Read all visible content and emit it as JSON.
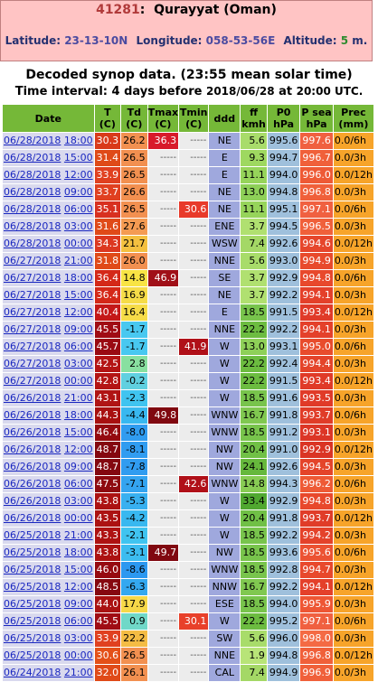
{
  "station": {
    "id": "41281",
    "name": "Qurayyat (Oman)",
    "lat_label": "Latitude:",
    "lat": "23-13-10N",
    "lon_label": "Longitude:",
    "lon": "058-53-56E",
    "alt_label": "Altitude:",
    "alt": "5",
    "alt_unit": "m."
  },
  "subtitle": "Decoded synop data. (23:55 mean solar time)",
  "interval": {
    "prefix": "Time interval:",
    "mid": "4 days before",
    "date": "2018/06/28",
    "at": "at",
    "time": "20:00 UTC."
  },
  "columns": [
    "Date",
    "T\n(C)",
    "Td\n(C)",
    "Tmax\n(C)",
    "Tmin\n(C)",
    "ddd",
    "ff\nkmh",
    "P0\nhPa",
    "P sea\nhPa",
    "Prec\n(mm)"
  ],
  "colors": {
    "header_bg": "#75b838",
    "table_header": "#75b838",
    "p0_bg": "#9fc0dc",
    "ddd_bg": "#9fa8dd",
    "prec_bg": "#f7a42a"
  },
  "rows": [
    {
      "date": "06/28/2018",
      "time": "18:00",
      "t": "30.3",
      "t_bg": "#d93a1a",
      "td": "26.2",
      "td_bg": "#f29050",
      "tmax": "36.3",
      "tmax_bg": "#d81a2a",
      "tmin": "-----",
      "ddd": "NE",
      "ff": "5.6",
      "ff_bg": "#a8dc6a",
      "p0": "995.6",
      "psea": "997.6",
      "psea_bg": "#f06040",
      "prec": "0.0/6h"
    },
    {
      "date": "06/28/2018",
      "time": "15:00",
      "t": "31.4",
      "t_bg": "#df4a18",
      "td": "26.5",
      "td_bg": "#f29050",
      "tmax": "-----",
      "tmin": "-----",
      "ddd": "E",
      "ff": "9.3",
      "ff_bg": "#9ed860",
      "p0": "994.7",
      "psea": "996.7",
      "psea_bg": "#f0603a",
      "prec": "0.0/3h"
    },
    {
      "date": "06/28/2018",
      "time": "12:00",
      "t": "33.9",
      "t_bg": "#e04020",
      "td": "26.5",
      "td_bg": "#f29050",
      "tmax": "-----",
      "tmin": "-----",
      "ddd": "E",
      "ff": "11.1",
      "ff_bg": "#96d45a",
      "p0": "994.0",
      "psea": "996.0",
      "psea_bg": "#ee5a35",
      "prec": "0.0/12h"
    },
    {
      "date": "06/28/2018",
      "time": "09:00",
      "t": "33.7",
      "t_bg": "#e04020",
      "td": "26.6",
      "td_bg": "#f29050",
      "tmax": "-----",
      "tmin": "-----",
      "ddd": "NE",
      "ff": "13.0",
      "ff_bg": "#8ed058",
      "p0": "994.8",
      "psea": "996.8",
      "psea_bg": "#f0603a",
      "prec": "0.0/3h"
    },
    {
      "date": "06/28/2018",
      "time": "06:00",
      "t": "35.1",
      "t_bg": "#d83020",
      "td": "26.5",
      "td_bg": "#f29050",
      "tmax": "-----",
      "tmin": "30.6",
      "tmin_bg": "#e83a2a",
      "ddd": "NE",
      "ff": "11.1",
      "ff_bg": "#96d45a",
      "p0": "995.1",
      "psea": "997.1",
      "psea_bg": "#f06040",
      "prec": "0.0/6h"
    },
    {
      "date": "06/28/2018",
      "time": "03:00",
      "t": "31.6",
      "t_bg": "#e04a18",
      "td": "27.6",
      "td_bg": "#f49b52",
      "tmax": "-----",
      "tmin": "-----",
      "ddd": "ENE",
      "ff": "3.7",
      "ff_bg": "#b0e070",
      "p0": "994.5",
      "psea": "996.5",
      "psea_bg": "#f0603a",
      "prec": "0.0/3h"
    },
    {
      "date": "06/28/2018",
      "time": "00:00",
      "t": "34.3",
      "t_bg": "#dc3820",
      "td": "21.7",
      "td_bg": "#f4c040",
      "tmax": "-----",
      "tmin": "-----",
      "ddd": "WSW",
      "ff": "7.4",
      "ff_bg": "#a4d866",
      "p0": "992.6",
      "psea": "994.6",
      "psea_bg": "#e6462c",
      "prec": "0.0/12h"
    },
    {
      "date": "06/27/2018",
      "time": "21:00",
      "t": "31.8",
      "t_bg": "#e04a18",
      "td": "26.0",
      "td_bg": "#f29050",
      "tmax": "-----",
      "tmin": "-----",
      "ddd": "NNE",
      "ff": "5.6",
      "ff_bg": "#a8dc6a",
      "p0": "993.0",
      "psea": "994.9",
      "psea_bg": "#e84a2c",
      "prec": "0.0/3h"
    },
    {
      "date": "06/27/2018",
      "time": "18:00",
      "t": "36.4",
      "t_bg": "#d42818",
      "td": "14.8",
      "td_bg": "#f8e444",
      "tmax": "46.9",
      "tmax_bg": "#a01018",
      "tmin": "-----",
      "ddd": "SE",
      "ff": "3.7",
      "ff_bg": "#b0e070",
      "p0": "992.9",
      "psea": "994.8",
      "psea_bg": "#e8482c",
      "prec": "0.0/6h"
    },
    {
      "date": "06/27/2018",
      "time": "15:00",
      "t": "36.4",
      "t_bg": "#d42818",
      "td": "16.9",
      "td_bg": "#f6dc48",
      "tmax": "-----",
      "tmin": "-----",
      "ddd": "NE",
      "ff": "3.7",
      "ff_bg": "#b0e070",
      "p0": "992.2",
      "psea": "994.1",
      "psea_bg": "#e4402a",
      "prec": "0.0/3h"
    },
    {
      "date": "06/27/2018",
      "time": "12:00",
      "t": "40.4",
      "t_bg": "#c41818",
      "td": "16.4",
      "td_bg": "#f6dc48",
      "tmax": "-----",
      "tmin": "-----",
      "ddd": "E",
      "ff": "18.5",
      "ff_bg": "#78c44c",
      "p0": "991.5",
      "psea": "993.4",
      "psea_bg": "#e03a28",
      "prec": "0.0/12h"
    },
    {
      "date": "06/27/2018",
      "time": "09:00",
      "t": "45.5",
      "t_bg": "#a00c14",
      "td": "-1.7",
      "td_bg": "#48c8f0",
      "tmax": "-----",
      "tmin": "-----",
      "ddd": "NNE",
      "ff": "22.2",
      "ff_bg": "#6cbc40",
      "p0": "992.2",
      "psea": "994.1",
      "psea_bg": "#e4402a",
      "prec": "0.0/3h"
    },
    {
      "date": "06/27/2018",
      "time": "06:00",
      "t": "45.7",
      "t_bg": "#9a0a12",
      "td": "-1.7",
      "td_bg": "#48c8f0",
      "tmax": "-----",
      "tmin": "41.9",
      "tmin_bg": "#b01018",
      "ddd": "W",
      "ff": "13.0",
      "ff_bg": "#8ed058",
      "p0": "993.1",
      "psea": "995.0",
      "psea_bg": "#e84c2c",
      "prec": "0.0/6h"
    },
    {
      "date": "06/27/2018",
      "time": "03:00",
      "t": "42.5",
      "t_bg": "#b41414",
      "td": "2.8",
      "td_bg": "#88e0a0",
      "tmax": "-----",
      "tmin": "-----",
      "ddd": "W",
      "ff": "22.2",
      "ff_bg": "#6cbc40",
      "p0": "992.4",
      "psea": "994.4",
      "psea_bg": "#e4442a",
      "prec": "0.0/3h"
    },
    {
      "date": "06/27/2018",
      "time": "00:00",
      "t": "42.8",
      "t_bg": "#b41414",
      "td": "-0.2",
      "td_bg": "#60d0e0",
      "tmax": "-----",
      "tmin": "-----",
      "ddd": "W",
      "ff": "22.2",
      "ff_bg": "#6cbc40",
      "p0": "991.5",
      "psea": "993.4",
      "psea_bg": "#e03a28",
      "prec": "0.0/12h"
    },
    {
      "date": "06/26/2018",
      "time": "21:00",
      "t": "43.1",
      "t_bg": "#b01414",
      "td": "-2.3",
      "td_bg": "#40c4f0",
      "tmax": "-----",
      "tmin": "-----",
      "ddd": "W",
      "ff": "18.5",
      "ff_bg": "#78c44c",
      "p0": "991.6",
      "psea": "993.5",
      "psea_bg": "#e03a28",
      "prec": "0.0/3h"
    },
    {
      "date": "06/26/2018",
      "time": "18:00",
      "t": "44.3",
      "t_bg": "#a81010",
      "td": "-4.4",
      "td_bg": "#38b8f0",
      "tmax": "49.8",
      "tmax_bg": "#800810",
      "tmin": "-----",
      "ddd": "WNW",
      "ff": "16.7",
      "ff_bg": "#80c850",
      "p0": "991.8",
      "psea": "993.7",
      "psea_bg": "#e03c28",
      "prec": "0.0/6h"
    },
    {
      "date": "06/26/2018",
      "time": "15:00",
      "t": "46.4",
      "t_bg": "#940a10",
      "td": "-8.0",
      "td_bg": "#309cf0",
      "tmax": "-----",
      "tmin": "-----",
      "ddd": "WNW",
      "ff": "18.5",
      "ff_bg": "#78c44c",
      "p0": "991.2",
      "psea": "993.1",
      "psea_bg": "#dc3626",
      "prec": "0.0/3h"
    },
    {
      "date": "06/26/2018",
      "time": "12:00",
      "t": "48.7",
      "t_bg": "#840810",
      "td": "-8.1",
      "td_bg": "#309cf0",
      "tmax": "-----",
      "tmin": "-----",
      "ddd": "NW",
      "ff": "20.4",
      "ff_bg": "#70c046",
      "p0": "991.0",
      "psea": "992.9",
      "psea_bg": "#da3424",
      "prec": "0.0/12h"
    },
    {
      "date": "06/26/2018",
      "time": "09:00",
      "t": "48.7",
      "t_bg": "#840810",
      "td": "-7.8",
      "td_bg": "#309cf0",
      "tmax": "-----",
      "tmin": "-----",
      "ddd": "NW",
      "ff": "24.1",
      "ff_bg": "#66b83c",
      "p0": "992.6",
      "psea": "994.5",
      "psea_bg": "#e4442a",
      "prec": "0.0/3h"
    },
    {
      "date": "06/26/2018",
      "time": "06:00",
      "t": "47.5",
      "t_bg": "#8e0a10",
      "td": "-7.1",
      "td_bg": "#34a4f0",
      "tmax": "-----",
      "tmin": "42.6",
      "tmin_bg": "#b01018",
      "ddd": "WNW",
      "ff": "14.8",
      "ff_bg": "#88cc54",
      "p0": "994.3",
      "psea": "996.2",
      "psea_bg": "#ee5a35",
      "prec": "0.0/6h"
    },
    {
      "date": "06/26/2018",
      "time": "03:00",
      "t": "43.8",
      "t_bg": "#ac1212",
      "td": "-5.3",
      "td_bg": "#38b0f0",
      "tmax": "-----",
      "tmin": "-----",
      "ddd": "W",
      "ff": "33.4",
      "ff_bg": "#50a830",
      "p0": "992.9",
      "psea": "994.8",
      "psea_bg": "#e8482c",
      "prec": "0.0/3h"
    },
    {
      "date": "06/26/2018",
      "time": "00:00",
      "t": "43.5",
      "t_bg": "#ac1212",
      "td": "-4.2",
      "td_bg": "#38b8f0",
      "tmax": "-----",
      "tmin": "-----",
      "ddd": "W",
      "ff": "20.4",
      "ff_bg": "#70c046",
      "p0": "991.8",
      "psea": "993.7",
      "psea_bg": "#e03c28",
      "prec": "0.0/12h"
    },
    {
      "date": "06/25/2018",
      "time": "21:00",
      "t": "43.3",
      "t_bg": "#ae1212",
      "td": "-2.1",
      "td_bg": "#40c4f0",
      "tmax": "-----",
      "tmin": "-----",
      "ddd": "W",
      "ff": "18.5",
      "ff_bg": "#78c44c",
      "p0": "992.2",
      "psea": "994.2",
      "psea_bg": "#e4422a",
      "prec": "0.0/3h"
    },
    {
      "date": "06/25/2018",
      "time": "18:00",
      "t": "43.8",
      "t_bg": "#ac1212",
      "td": "-3.1",
      "td_bg": "#3cbcf0",
      "tmax": "49.7",
      "tmax_bg": "#800810",
      "tmin": "-----",
      "ddd": "NW",
      "ff": "18.5",
      "ff_bg": "#78c44c",
      "p0": "993.6",
      "psea": "995.6",
      "psea_bg": "#ec5232",
      "prec": "0.0/6h"
    },
    {
      "date": "06/25/2018",
      "time": "15:00",
      "t": "46.0",
      "t_bg": "#960a10",
      "td": "-8.6",
      "td_bg": "#2c98f0",
      "tmax": "-----",
      "tmin": "-----",
      "ddd": "WNW",
      "ff": "18.5",
      "ff_bg": "#78c44c",
      "p0": "992.8",
      "psea": "994.7",
      "psea_bg": "#e8482c",
      "prec": "0.0/3h"
    },
    {
      "date": "06/25/2018",
      "time": "12:00",
      "t": "48.5",
      "t_bg": "#860810",
      "td": "-6.3",
      "td_bg": "#34a8f0",
      "tmax": "-----",
      "tmin": "-----",
      "ddd": "NNW",
      "ff": "16.7",
      "ff_bg": "#80c850",
      "p0": "992.2",
      "psea": "994.1",
      "psea_bg": "#e4402a",
      "prec": "0.0/12h"
    },
    {
      "date": "06/25/2018",
      "time": "09:00",
      "t": "44.0",
      "t_bg": "#aa1212",
      "td": "17.9",
      "td_bg": "#f6d848",
      "tmax": "-----",
      "tmin": "-----",
      "ddd": "ESE",
      "ff": "18.5",
      "ff_bg": "#78c44c",
      "p0": "994.0",
      "psea": "995.9",
      "psea_bg": "#ee5634",
      "prec": "0.0/3h"
    },
    {
      "date": "06/25/2018",
      "time": "06:00",
      "t": "45.5",
      "t_bg": "#a00c14",
      "td": "0.9",
      "td_bg": "#70d8c8",
      "tmax": "-----",
      "tmin": "30.1",
      "tmin_bg": "#e8402a",
      "ddd": "W",
      "ff": "22.2",
      "ff_bg": "#6cbc40",
      "p0": "995.2",
      "psea": "997.1",
      "psea_bg": "#f06040",
      "prec": "0.0/6h"
    },
    {
      "date": "06/25/2018",
      "time": "03:00",
      "t": "33.9",
      "t_bg": "#e04020",
      "td": "22.2",
      "td_bg": "#f4bc44",
      "tmax": "-----",
      "tmin": "-----",
      "ddd": "SW",
      "ff": "5.6",
      "ff_bg": "#a8dc6a",
      "p0": "996.0",
      "psea": "998.0",
      "psea_bg": "#f46a44",
      "prec": "0.0/3h"
    },
    {
      "date": "06/25/2018",
      "time": "00:00",
      "t": "30.6",
      "t_bg": "#e45018",
      "td": "26.5",
      "td_bg": "#f29050",
      "tmax": "-----",
      "tmin": "-----",
      "ddd": "NNE",
      "ff": "1.9",
      "ff_bg": "#b8e478",
      "p0": "994.8",
      "psea": "996.8",
      "psea_bg": "#f0603a",
      "prec": "0.0/12h"
    },
    {
      "date": "06/24/2018",
      "time": "21:00",
      "t": "32.0",
      "t_bg": "#e04a18",
      "td": "26.1",
      "td_bg": "#f29050",
      "tmax": "-----",
      "tmin": "-----",
      "ddd": "CAL",
      "ff": "7.4",
      "ff_bg": "#a4d866",
      "p0": "994.9",
      "psea": "996.9",
      "psea_bg": "#f0603a",
      "prec": "0.0/3h"
    }
  ]
}
